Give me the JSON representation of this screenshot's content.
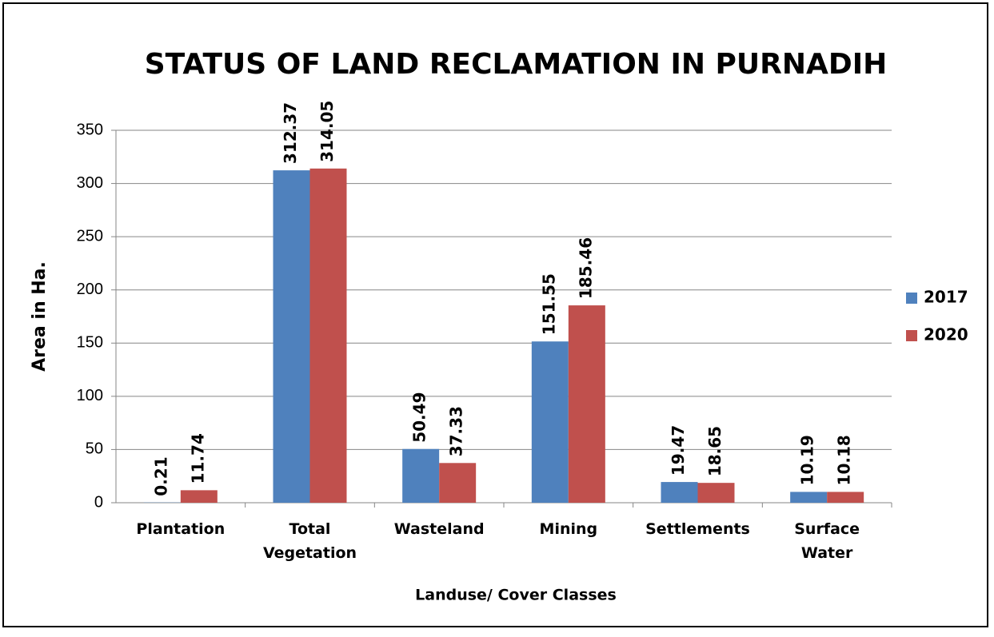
{
  "chart_data": {
    "type": "bar",
    "title": "STATUS OF LAND RECLAMATION IN PURNADIH",
    "categories": [
      "Plantation",
      "Total Vegetation",
      "Wasteland",
      "Mining",
      "Settlements",
      "Surface Water"
    ],
    "series": [
      {
        "name": "2017",
        "color": "#4f81bd",
        "values": [
          0.21,
          312.37,
          50.49,
          151.55,
          19.47,
          10.19
        ]
      },
      {
        "name": "2020",
        "color": "#c0504d",
        "values": [
          11.74,
          314.05,
          37.33,
          185.46,
          18.65,
          10.18
        ]
      }
    ],
    "y_label": "Area in Ha.",
    "x_label": "Landuse/ Cover Classes",
    "ylim": [
      0,
      350
    ],
    "yticks": [
      0,
      50,
      100,
      150,
      200,
      250,
      300,
      350
    ],
    "grid": true,
    "legend": "right"
  }
}
